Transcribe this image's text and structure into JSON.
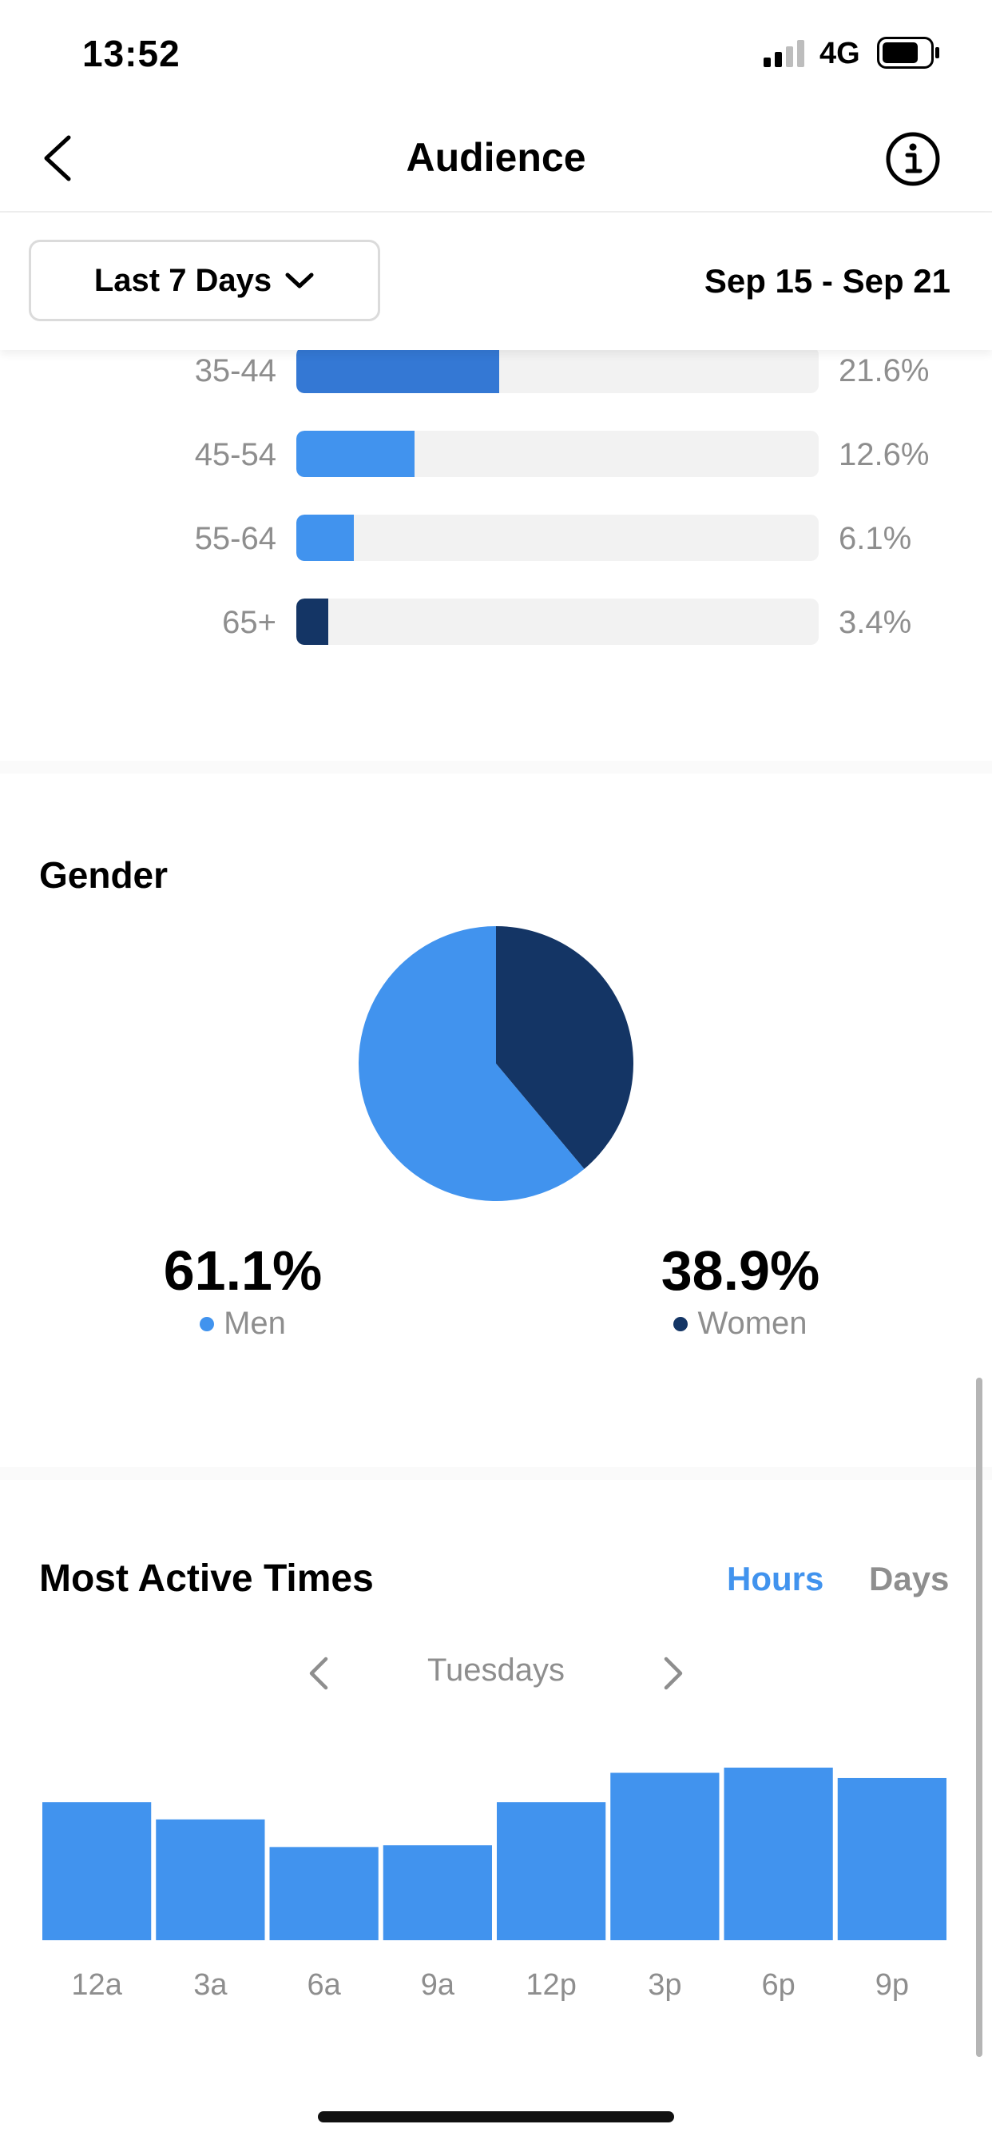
{
  "status_bar": {
    "time": "13:52",
    "network": "4G",
    "icons": [
      "signal-icon",
      "battery-icon"
    ]
  },
  "nav": {
    "title": "Audience",
    "back_icon": "chevron-left-icon",
    "info_icon": "info-icon"
  },
  "filter": {
    "period": "Last 7 Days",
    "date_range": "Sep 15 - Sep 21"
  },
  "age_groups": [
    {
      "label": "35-44",
      "value": "21.6%",
      "fraction": 0.216,
      "color": "#3478d4"
    },
    {
      "label": "45-54",
      "value": "12.6%",
      "fraction": 0.126,
      "color": "#4193ee"
    },
    {
      "label": "55-64",
      "value": "6.1%",
      "fraction": 0.061,
      "color": "#4193ee"
    },
    {
      "label": "65+",
      "value": "3.4%",
      "fraction": 0.034,
      "color": "#143565"
    }
  ],
  "gender": {
    "title": "Gender",
    "men": {
      "percent": "61.1%",
      "label": "Men",
      "fraction": 0.611,
      "color": "#4193ee"
    },
    "women": {
      "percent": "38.9%",
      "label": "Women",
      "fraction": 0.389,
      "color": "#143565"
    }
  },
  "active_times": {
    "title": "Most Active Times",
    "tabs": {
      "hours": "Hours",
      "days": "Days",
      "selected": "hours"
    },
    "day": "Tuesdays",
    "accent": "#4193ee"
  },
  "chart_data": {
    "type": "bar",
    "categories": [
      "12a",
      "3a",
      "6a",
      "9a",
      "12p",
      "3p",
      "6p",
      "9p"
    ],
    "values": [
      0.8,
      0.7,
      0.54,
      0.55,
      0.8,
      0.97,
      1.0,
      0.94
    ],
    "ylim": [
      0,
      1
    ],
    "grid": false,
    "bar_color": "#4193ee"
  }
}
